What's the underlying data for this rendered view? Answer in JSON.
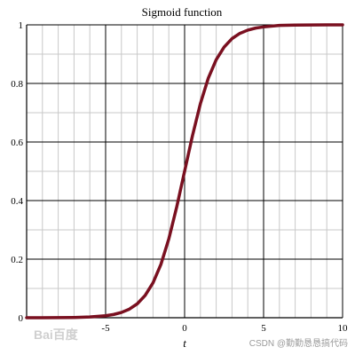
{
  "chart_data": {
    "type": "line",
    "title": "Sigmoid function",
    "xlabel": "t",
    "ylabel": "",
    "xlim": [
      -10,
      10
    ],
    "ylim": [
      0,
      1
    ],
    "x_ticks": [
      {
        "value": -5,
        "label": "-5"
      },
      {
        "value": 0,
        "label": "0"
      },
      {
        "value": 5,
        "label": "5"
      },
      {
        "value": 10,
        "label": "10"
      }
    ],
    "y_ticks": [
      {
        "value": 0,
        "label": "0"
      },
      {
        "value": 0.2,
        "label": "0.2"
      },
      {
        "value": 0.4,
        "label": "0.4"
      },
      {
        "value": 0.6,
        "label": "0.6"
      },
      {
        "value": 0.8,
        "label": "0.8"
      },
      {
        "value": 1,
        "label": "1"
      }
    ],
    "grid": true,
    "series": [
      {
        "x": [
          -10,
          -9,
          -8,
          -7,
          -6,
          -5,
          -4.5,
          -4,
          -3.5,
          -3,
          -2.5,
          -2,
          -1.5,
          -1,
          -0.5,
          0,
          0.5,
          1,
          1.5,
          2,
          2.5,
          3,
          3.5,
          4,
          4.5,
          5,
          6,
          7,
          8,
          9,
          10
        ],
        "y": [
          4.54e-05,
          0.000123,
          0.000335,
          0.000911,
          0.00247,
          0.00669,
          0.011,
          0.018,
          0.0293,
          0.0474,
          0.0759,
          0.119,
          0.182,
          0.269,
          0.378,
          0.5,
          0.622,
          0.731,
          0.818,
          0.881,
          0.924,
          0.953,
          0.971,
          0.982,
          0.989,
          0.993,
          0.998,
          0.9991,
          0.99966,
          0.99988,
          0.99995
        ],
        "color": "#7a1020"
      }
    ]
  },
  "watermarks": {
    "left": "Bai百度",
    "right": "CSDN @勤勤恳恳搞代码"
  }
}
